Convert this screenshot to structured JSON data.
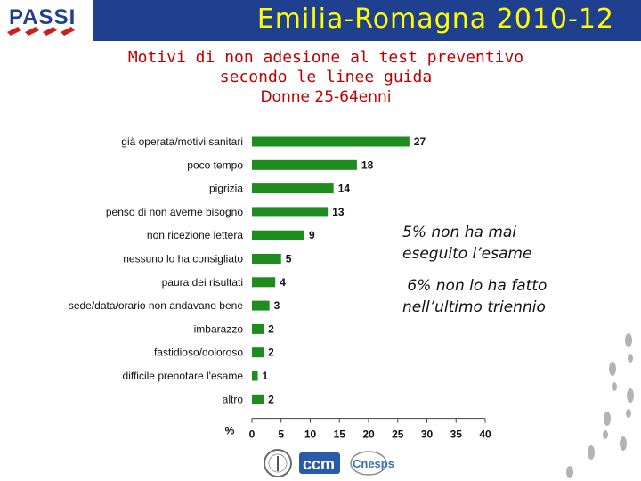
{
  "header": {
    "title": "Emilia-Romagna 2010-12",
    "logo_text": "PASSI"
  },
  "subtitle": {
    "line1": "Motivi di non adesione al test preventivo",
    "line2": "secondo le linee guida",
    "line3": "Donne 25-64enni"
  },
  "notes": {
    "note1_line1": "5% non ha mai",
    "note1_line2": "eseguito l’esame",
    "note2_line1": " 6% non lo ha fatto",
    "note2_line2": "nell’ultimo triennio"
  },
  "footer": {
    "logo_ccm": "ccm",
    "logo_cnesps": "Cnesps"
  },
  "colors": {
    "bar": "#1f8c1f",
    "banner": "#1f3f8f",
    "title": "#ffff00",
    "subtitle": "#c00000"
  },
  "chart_data": {
    "type": "bar",
    "orientation": "horizontal",
    "categories": [
      "già operata/motivi sanitari",
      "poco tempo",
      "pigrizia",
      "penso di non averne bisogno",
      "non ricezione lettera",
      "nessuno lo ha consigliato",
      "paura dei risultati",
      "sede/data/orario non andavano bene",
      "imbarazzo",
      "fastidioso/doloroso",
      "difficile prenotare l'esame",
      "altro"
    ],
    "values": [
      27,
      18,
      14,
      13,
      9,
      5,
      4,
      3,
      2,
      2,
      1,
      2
    ],
    "xlabel": "%",
    "xlim": [
      0,
      40
    ],
    "xticks": [
      0,
      5,
      10,
      15,
      20,
      25,
      30,
      35,
      40
    ],
    "grid": false,
    "data_labels": true
  }
}
